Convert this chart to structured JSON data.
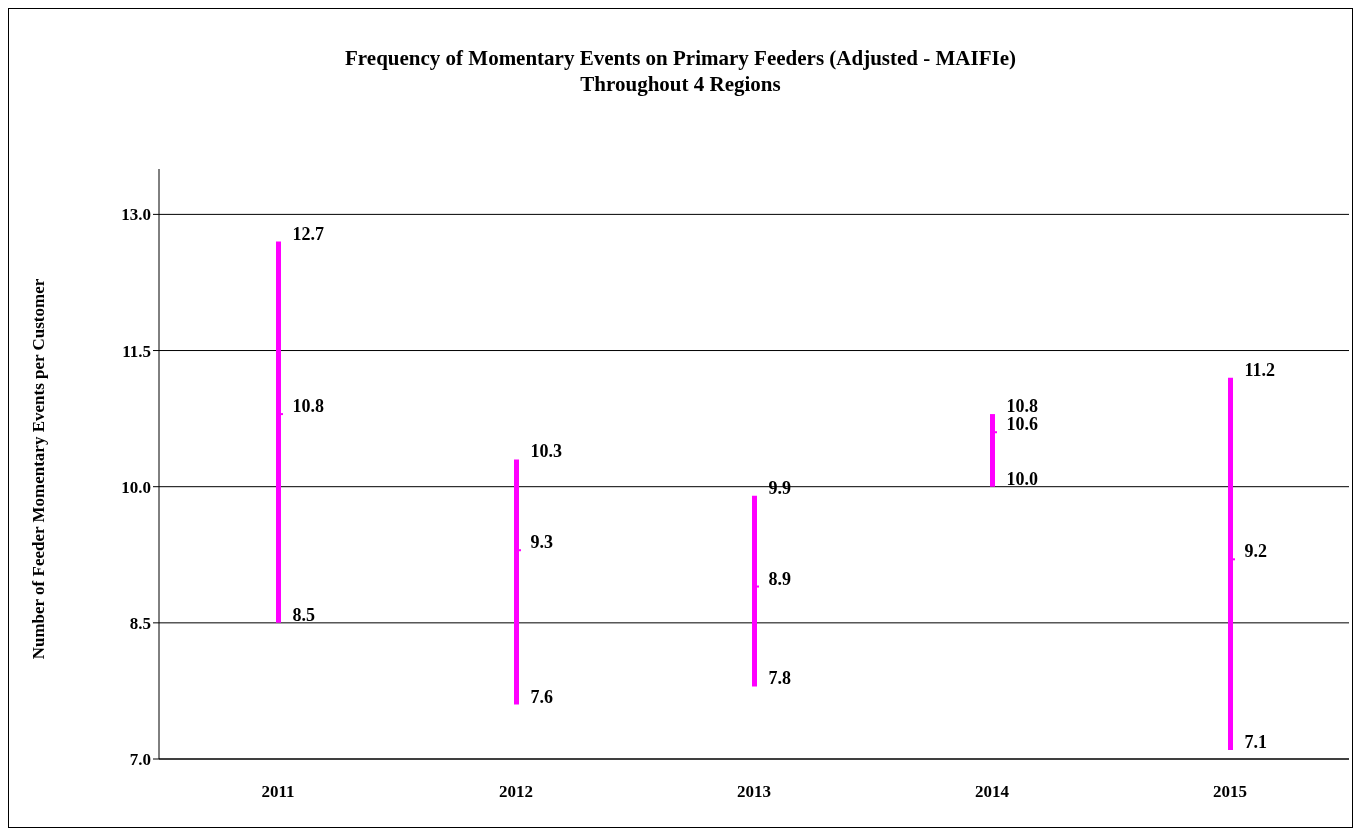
{
  "chart_data": {
    "type": "candlestick",
    "title": "Frequency of Momentary Events on Primary Feeders (Adjusted - MAIFIe)\nThroughout 4 Regions",
    "ylabel": "Number  of Feeder Momentary Events per Customer",
    "categories": [
      "2011",
      "2012",
      "2013",
      "2014",
      "2015"
    ],
    "ohlc": [
      [
        10.8,
        12.7,
        8.5,
        10.8
      ],
      [
        9.3,
        10.3,
        7.6,
        9.3
      ],
      [
        8.9,
        9.9,
        7.8,
        8.9
      ],
      [
        10.6,
        10.8,
        10.0,
        10.6
      ],
      [
        9.2,
        11.2,
        7.1,
        9.2
      ]
    ],
    "color": "#ff00ff",
    "ylim": [
      7,
      13.5
    ],
    "yticks": [
      {
        "value": 7,
        "label": "7.0"
      },
      {
        "value": 8.5,
        "label": "8.5"
      },
      {
        "value": 10,
        "label": "10.0"
      },
      {
        "value": 11.5,
        "label": "11.5"
      },
      {
        "value": 13,
        "label": "13.0"
      }
    ],
    "grid": "y",
    "annotations": [
      {
        "text": "12.7",
        "x": "2011",
        "y": 12.7
      },
      {
        "text": "10.8",
        "x": "2011",
        "y": 10.8
      },
      {
        "text": "8.5",
        "x": "2011",
        "y": 8.5
      },
      {
        "text": "10.3",
        "x": "2012",
        "y": 10.3
      },
      {
        "text": "9.3",
        "x": "2012",
        "y": 9.3
      },
      {
        "text": "7.6",
        "x": "2012",
        "y": 7.6
      },
      {
        "text": "9.9",
        "x": "2013",
        "y": 9.9
      },
      {
        "text": "8.9",
        "x": "2013",
        "y": 8.9
      },
      {
        "text": "7.8",
        "x": "2013",
        "y": 7.8
      },
      {
        "text": "10.8",
        "x": "2014",
        "y": 10.8
      },
      {
        "text": "10.6",
        "x": "2014",
        "y": 10.6
      },
      {
        "text": "10.0",
        "x": "2014",
        "y": 10
      },
      {
        "text": "11.2",
        "x": "2015",
        "y": 11.2
      },
      {
        "text": "9.2",
        "x": "2015",
        "y": 9.2
      },
      {
        "text": "7.1",
        "x": "2015",
        "y": 7.1
      }
    ]
  }
}
